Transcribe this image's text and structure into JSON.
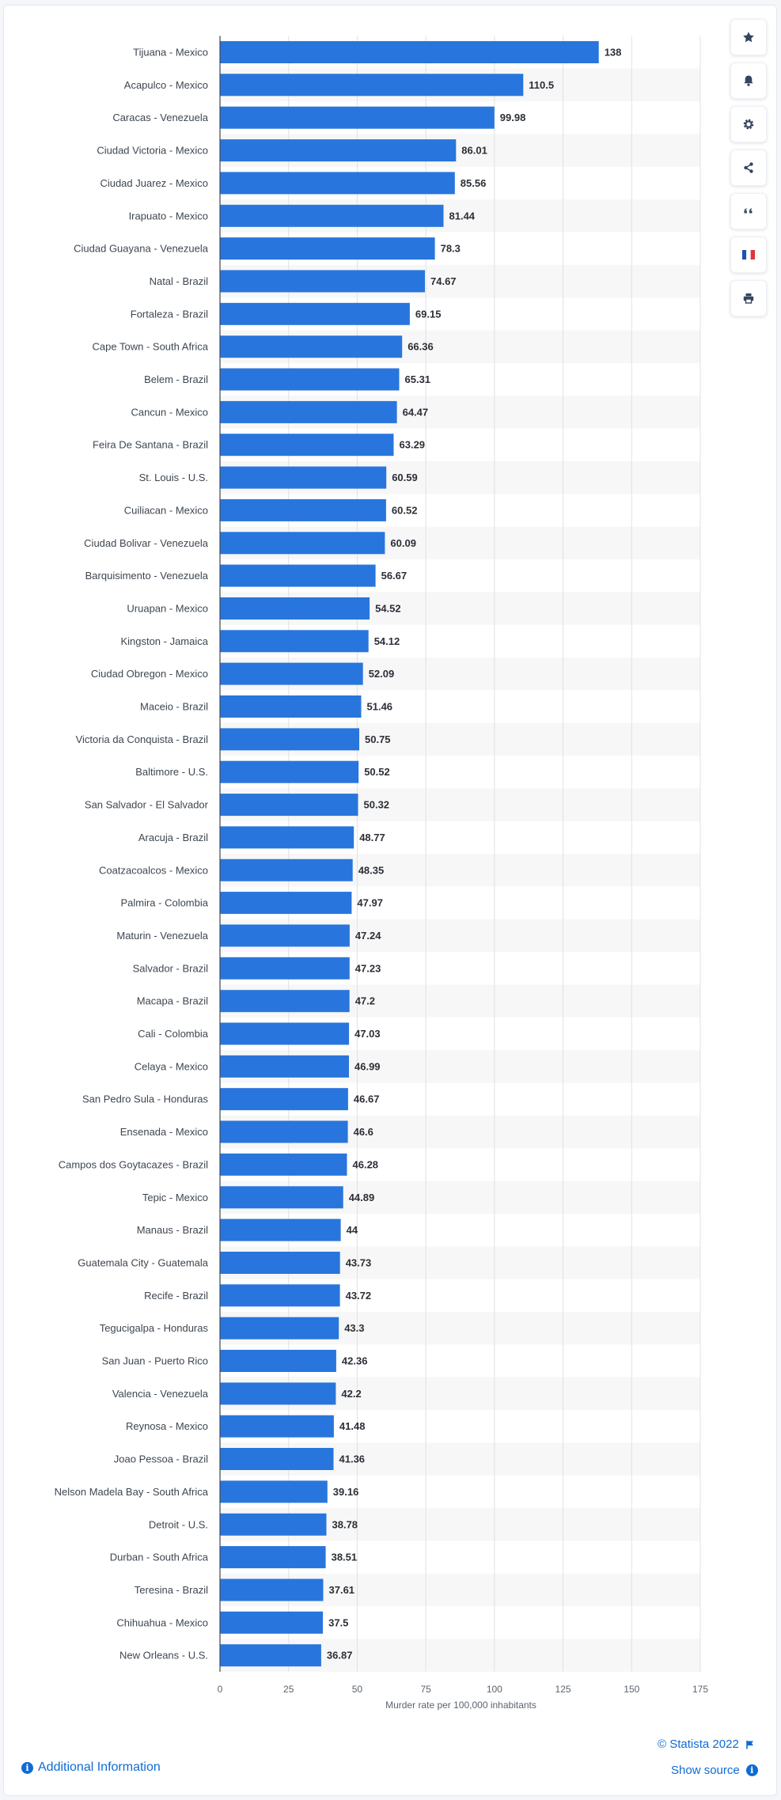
{
  "chart_data": {
    "type": "bar",
    "orientation": "horizontal",
    "categories": [
      "Tijuana - Mexico",
      "Acapulco - Mexico",
      "Caracas - Venezuela",
      "Ciudad Victoria - Mexico",
      "Ciudad Juarez - Mexico",
      "Irapuato - Mexico",
      "Ciudad Guayana - Venezuela",
      "Natal - Brazil",
      "Fortaleza - Brazil",
      "Cape Town - South Africa",
      "Belem - Brazil",
      "Cancun - Mexico",
      "Feira De Santana - Brazil",
      "St. Louis - U.S.",
      "Cuiliacan - Mexico",
      "Ciudad Bolivar - Venezuela",
      "Barquisimento - Venezuela",
      "Uruapan - Mexico",
      "Kingston - Jamaica",
      "Ciudad Obregon - Mexico",
      "Maceio - Brazil",
      "Victoria da Conquista - Brazil",
      "Baltimore - U.S.",
      "San Salvador - El Salvador",
      "Aracuja - Brazil",
      "Coatzacoalcos - Mexico",
      "Palmira - Colombia",
      "Maturin - Venezuela",
      "Salvador - Brazil",
      "Macapa - Brazil",
      "Cali - Colombia",
      "Celaya - Mexico",
      "San Pedro Sula - Honduras",
      "Ensenada - Mexico",
      "Campos dos Goytacazes - Brazil",
      "Tepic - Mexico",
      "Manaus - Brazil",
      "Guatemala City - Guatemala",
      "Recife - Brazil",
      "Tegucigalpa - Honduras",
      "San Juan - Puerto Rico",
      "Valencia - Venezuela",
      "Reynosa - Mexico",
      "Joao Pessoa - Brazil",
      "Nelson Madela Bay - South Africa",
      "Detroit - U.S.",
      "Durban - South Africa",
      "Teresina - Brazil",
      "Chihuahua - Mexico",
      "New Orleans - U.S."
    ],
    "values": [
      138,
      110.5,
      99.98,
      86.01,
      85.56,
      81.44,
      78.3,
      74.67,
      69.15,
      66.36,
      65.31,
      64.47,
      63.29,
      60.59,
      60.52,
      60.09,
      56.67,
      54.52,
      54.12,
      52.09,
      51.46,
      50.75,
      50.52,
      50.32,
      48.77,
      48.35,
      47.97,
      47.24,
      47.23,
      47.2,
      47.03,
      46.99,
      46.67,
      46.6,
      46.28,
      44.89,
      44,
      43.73,
      43.72,
      43.3,
      42.36,
      42.2,
      41.48,
      41.36,
      39.16,
      38.78,
      38.51,
      37.61,
      37.5,
      36.87
    ],
    "value_labels": [
      "138",
      "110.5",
      "99.98",
      "86.01",
      "85.56",
      "81.44",
      "78.3",
      "74.67",
      "69.15",
      "66.36",
      "65.31",
      "64.47",
      "63.29",
      "60.59",
      "60.52",
      "60.09",
      "56.67",
      "54.52",
      "54.12",
      "52.09",
      "51.46",
      "50.75",
      "50.52",
      "50.32",
      "48.77",
      "48.35",
      "47.97",
      "47.24",
      "47.23",
      "47.2",
      "47.03",
      "46.99",
      "46.67",
      "46.6",
      "46.28",
      "44.89",
      "44",
      "43.73",
      "43.72",
      "43.3",
      "42.36",
      "42.2",
      "41.48",
      "41.36",
      "39.16",
      "38.78",
      "38.51",
      "37.61",
      "37.5",
      "36.87"
    ],
    "xlabel": "Murder rate per 100,000 inhabitants",
    "ylabel": "",
    "xlim": [
      0,
      175
    ],
    "xticks": [
      0,
      25,
      50,
      75,
      100,
      125,
      150,
      175
    ],
    "grid": true,
    "bar_color": "#2876dd",
    "stripe_color": "#f7f7f7"
  },
  "toolbar": {
    "icons": [
      "star-icon",
      "bell-icon",
      "gear-icon",
      "share-icon",
      "quote-icon",
      "flag-icon",
      "print-icon"
    ]
  },
  "footer": {
    "additional_info": "Additional Information",
    "copyright": "© Statista 2022",
    "show_source": "Show source"
  },
  "colors": {
    "accent": "#0f6bd3",
    "text": "#3e4651",
    "tool_icon": "#34475f"
  }
}
